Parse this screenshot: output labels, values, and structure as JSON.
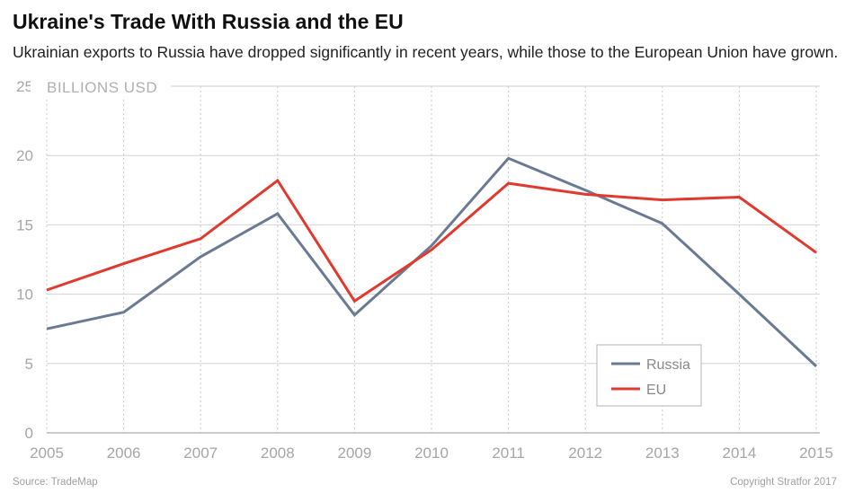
{
  "title": "Ukraine's Trade With Russia and the EU",
  "subtitle": "Ukrainian exports to Russia have dropped significantly in recent years, while those to the European Union have grown.",
  "source": "Source: TradeMap",
  "copyright": "Copyright Stratfor 2017",
  "chart_data": {
    "type": "line",
    "title": "Ukraine's Trade With Russia and the EU",
    "ylabel": "BILLIONS USD",
    "xlabel": "",
    "x": [
      "2005",
      "2006",
      "2007",
      "2008",
      "2009",
      "2010",
      "2011",
      "2012",
      "2013",
      "2014",
      "2015"
    ],
    "ylim": [
      0,
      25
    ],
    "yticks": [
      "0",
      "5",
      "10",
      "15",
      "20",
      "25"
    ],
    "grid": true,
    "legend_position": "bottom-right",
    "series": [
      {
        "name": "Russia",
        "color": "#6b7a93",
        "values": [
          7.5,
          8.7,
          12.7,
          15.8,
          8.5,
          13.5,
          19.8,
          17.5,
          15.1,
          10.0,
          4.8
        ]
      },
      {
        "name": "EU",
        "color": "#e03a2f",
        "values": [
          10.3,
          12.2,
          14.0,
          18.2,
          9.5,
          13.2,
          18.0,
          17.2,
          16.8,
          17.0,
          13.0
        ]
      }
    ]
  }
}
